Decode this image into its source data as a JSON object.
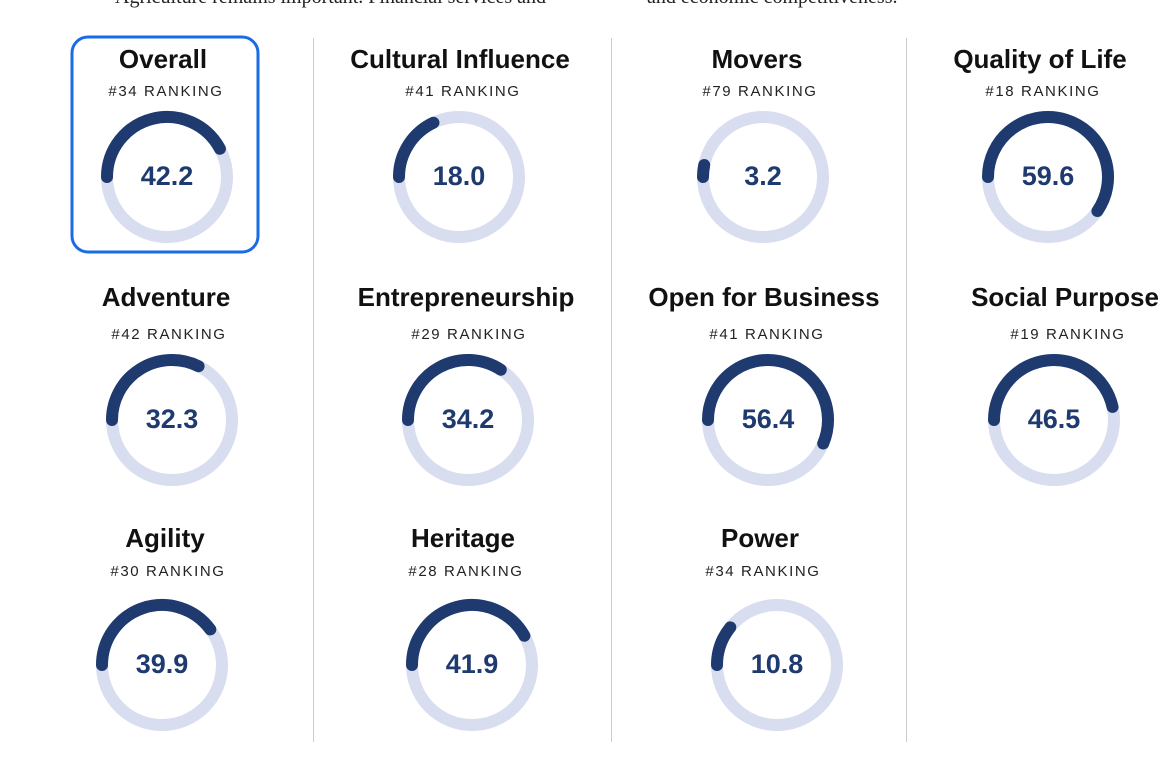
{
  "intro_text": [
    "Agriculture remains important. Financial services and",
    "and economic competitiveness."
  ],
  "cards": [
    {
      "title": "Overall",
      "ranking": "#34 RANKING",
      "score": 42.2
    },
    {
      "title": "Cultural Influence",
      "ranking": "#41 RANKING",
      "score": 18.0
    },
    {
      "title": "Movers",
      "ranking": "#79 RANKING",
      "score": 3.2
    },
    {
      "title": "Quality of Life",
      "ranking": "#18 RANKING",
      "score": 59.6
    },
    {
      "title": "Adventure",
      "ranking": "#42 RANKING",
      "score": 32.3
    },
    {
      "title": "Entrepreneurship",
      "ranking": "#29 RANKING",
      "score": 34.2
    },
    {
      "title": "Open for Business",
      "ranking": "#41 RANKING",
      "score": 56.4
    },
    {
      "title": "Social Purpose",
      "ranking": "#19 RANKING",
      "score": 46.5
    },
    {
      "title": "Agility",
      "ranking": "#30 RANKING",
      "score": 39.9
    },
    {
      "title": "Heritage",
      "ranking": "#28 RANKING",
      "score": 41.9
    },
    {
      "title": "Power",
      "ranking": "#34 RANKING",
      "score": 10.8
    }
  ]
}
